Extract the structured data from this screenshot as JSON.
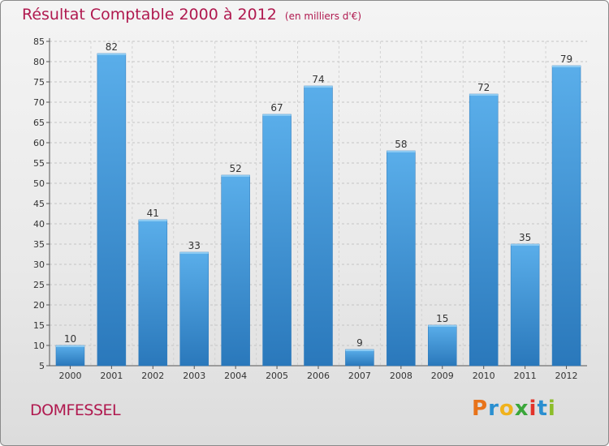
{
  "title": "Résultat Comptable 2000 à 2012",
  "unit_label": "(en milliers d'€)",
  "town": "DOMFESSEL",
  "brand": {
    "letters": [
      "P",
      "r",
      "o",
      "x",
      "i",
      "t",
      "i"
    ],
    "colors": [
      "#e8731a",
      "#2a8fd0",
      "#f0b21c",
      "#3aa63a",
      "#e2342b",
      "#2a8fd0",
      "#8cbd2a"
    ]
  },
  "colors": {
    "bar": "#4a9fe0",
    "bar_dark": "#2e7cbe",
    "title": "#b0194f"
  },
  "chart_data": {
    "type": "bar",
    "categories": [
      "2000",
      "2001",
      "2002",
      "2003",
      "2004",
      "2005",
      "2006",
      "2007",
      "2008",
      "2009",
      "2010",
      "2011",
      "2012"
    ],
    "values": [
      10,
      82,
      41,
      33,
      52,
      67,
      74,
      9,
      58,
      15,
      72,
      35,
      79
    ],
    "ylim": [
      5,
      85
    ],
    "yticks": [
      5,
      10,
      15,
      20,
      25,
      30,
      35,
      40,
      45,
      50,
      55,
      60,
      65,
      70,
      75,
      80,
      85
    ],
    "grid": true
  }
}
